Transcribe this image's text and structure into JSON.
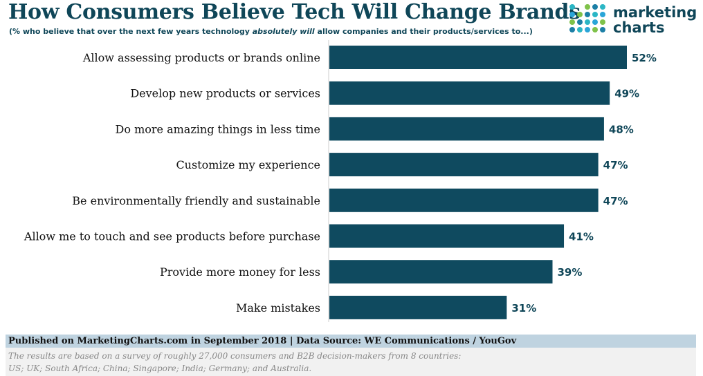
{
  "header": {
    "title": "How Consumers Believe Tech Will Change Brands",
    "subtitle_pre": "(% who believe that over the next few years technology ",
    "subtitle_em": "absolutely will",
    "subtitle_post": " allow companies and their products/services to...)"
  },
  "logo": {
    "line1": "marketing",
    "line2": "charts"
  },
  "chart_data": {
    "type": "bar",
    "orientation": "horizontal",
    "categories": [
      "Allow assessing products or brands online",
      "Develop new products or services",
      "Do more amazing things in less time",
      "Customize my experience",
      "Be environmentally friendly and sustainable",
      "Allow me to touch and see products before purchase",
      "Provide more money for less",
      "Make mistakes"
    ],
    "values": [
      52,
      49,
      48,
      47,
      47,
      41,
      39,
      31
    ],
    "value_labels": [
      "52%",
      "49%",
      "48%",
      "47%",
      "47%",
      "41%",
      "39%",
      "31%"
    ],
    "xlim": [
      0,
      52
    ],
    "bar_color": "#0f4a5f",
    "label_color": "#0f4658",
    "grid": false
  },
  "footer": {
    "published": "Published on MarketingCharts.com in September 2018 | Data Source: WE Communications / YouGov",
    "note_line1": "The results are based on a survey of roughly 27,000 consumers and B2B decision-makers from 8 countries:",
    "note_line2": "US; UK; South Africa; China; Singapore; India; Germany; and Australia."
  },
  "colors": {
    "title": "#0f4658",
    "bar": "#0f4a5f",
    "footer_band": "#bfd3e0",
    "footer_note_bg": "#f1f1f1",
    "logo_dots": [
      "#2bb6c5",
      "#2aa5d8",
      "#7fc24a",
      "#1c7fa6"
    ]
  }
}
